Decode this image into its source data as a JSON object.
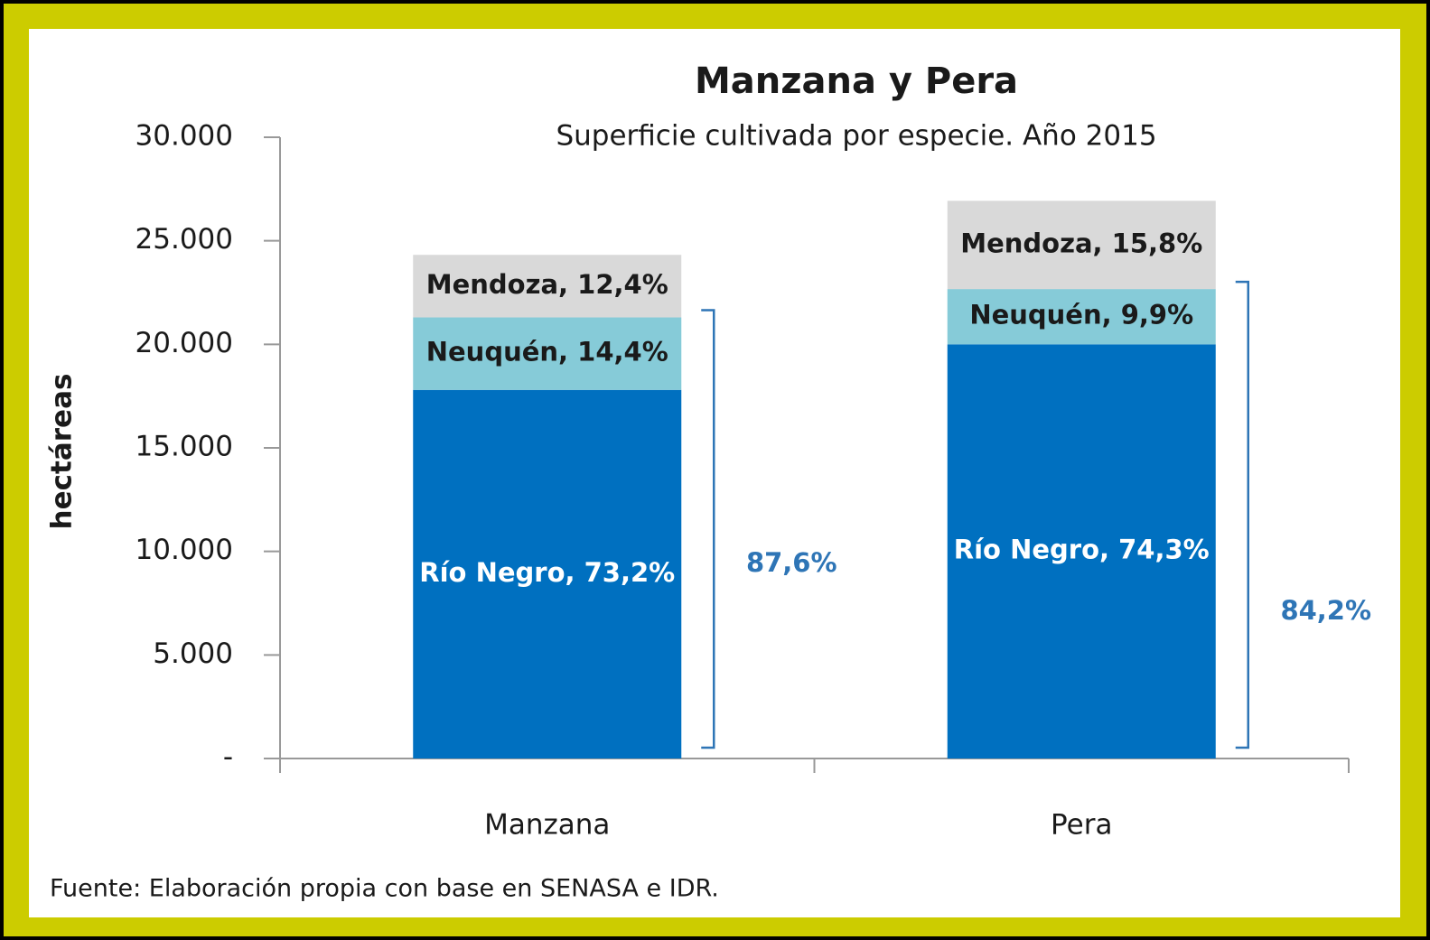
{
  "chart_data": {
    "type": "stacked_bar",
    "title": "Manzana y Pera",
    "subtitle": "Superficie cultivada por especie. Año 2015",
    "y_label": "hectáreas",
    "source": "Fuente: Elaboración propia con base en SENASA e IDR.",
    "categories": [
      "Manzana",
      "Pera"
    ],
    "series": [
      {
        "color": "#0070c0",
        "text_color": "#ffffff",
        "values": [
          17800,
          20000
        ],
        "labels": [
          "Río Negro, 73,2%",
          "Río Negro, 74,3%"
        ]
      },
      {
        "color": "#86cbd8",
        "text_color": "#1a1a1a",
        "values": [
          3500,
          2670
        ],
        "labels": [
          "Neuquén,  14,4%",
          "Neuquén,  9,9%"
        ]
      },
      {
        "color": "#d9d9d9",
        "text_color": "#1a1a1a",
        "values": [
          3020,
          4260
        ],
        "labels": [
          "Mendoza,  12,4%",
          "Mendoza,  15,8%"
        ]
      }
    ],
    "bracket_labels": [
      "87,6%",
      "84,2%"
    ],
    "bracket_color": "#2e75b6",
    "ylim": [
      0,
      30000
    ],
    "yticks": [
      {
        "value": 0,
        "label": "-"
      },
      {
        "value": 5000,
        "label": "5.000"
      },
      {
        "value": 10000,
        "label": "10.000"
      },
      {
        "value": 15000,
        "label": "15.000"
      },
      {
        "value": 20000,
        "label": "20.000"
      },
      {
        "value": 25000,
        "label": "25.000"
      },
      {
        "value": 30000,
        "label": "30.000"
      }
    ]
  }
}
